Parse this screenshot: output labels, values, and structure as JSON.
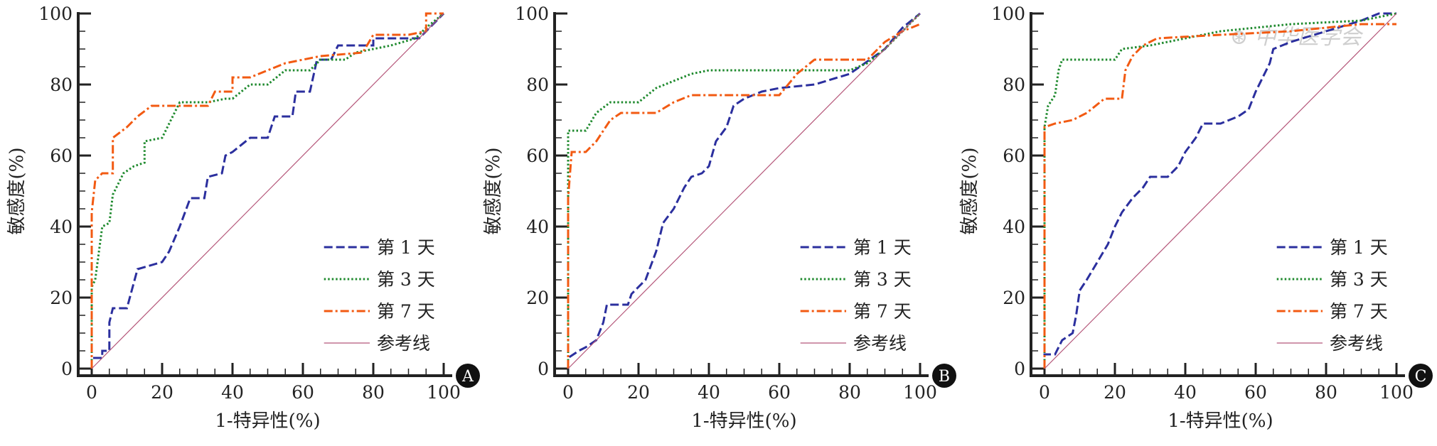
{
  "watermark": "中华医学会",
  "chart_data": [
    {
      "type": "line",
      "panel": "A",
      "xlabel": "1-特异性(%)",
      "ylabel": "敏感度(%)",
      "xlim": [
        0,
        100
      ],
      "ylim": [
        0,
        100
      ],
      "xticks": [
        "0",
        "20",
        "40",
        "60",
        "80",
        "100"
      ],
      "yticks": [
        "0",
        "20",
        "40",
        "60",
        "80",
        "100"
      ],
      "legend_position": "bottom-right",
      "series": [
        {
          "name": "第 1 天",
          "color": "#2b2f9e",
          "style": "dashed",
          "x": [
            0,
            0,
            3,
            3,
            5,
            5,
            6,
            10,
            13,
            20,
            22,
            25,
            28,
            32,
            33,
            37,
            38,
            40,
            45,
            50,
            52,
            57,
            58,
            62,
            64,
            68,
            70,
            80,
            80,
            93,
            95,
            100
          ],
          "y": [
            0,
            3,
            3,
            5,
            5,
            13,
            17,
            17,
            28,
            30,
            33,
            40,
            48,
            48,
            54,
            55,
            60,
            61,
            65,
            65,
            71,
            71,
            78,
            78,
            87,
            87,
            91,
            91,
            93,
            93,
            95,
            100
          ]
        },
        {
          "name": "第 3 天",
          "color": "#1f8a2e",
          "style": "dotted",
          "x": [
            0,
            0,
            1,
            3,
            5,
            6,
            7,
            9,
            12,
            15,
            15,
            20,
            22,
            25,
            33,
            38,
            40,
            45,
            50,
            55,
            62,
            65,
            72,
            75,
            85,
            92,
            95,
            100
          ],
          "y": [
            0,
            23,
            25,
            40,
            41,
            49,
            51,
            55,
            57,
            58,
            64,
            65,
            69,
            75,
            75,
            76,
            76,
            80,
            80,
            84,
            84,
            87,
            87,
            89,
            91,
            93,
            96,
            100
          ]
        },
        {
          "name": "第 7 天",
          "color": "#f25a12",
          "style": "dashdot",
          "x": [
            0,
            0,
            1,
            3,
            6,
            6,
            10,
            13,
            17,
            33,
            35,
            40,
            40,
            45,
            50,
            55,
            65,
            77,
            80,
            90,
            95,
            95,
            100
          ],
          "y": [
            0,
            44,
            53,
            55,
            55,
            65,
            68,
            71,
            74,
            74,
            78,
            78,
            82,
            82,
            84,
            86,
            88,
            89,
            94,
            94,
            95,
            100,
            100
          ]
        },
        {
          "name": "参考线",
          "color": "#b5577a",
          "style": "thin",
          "x": [
            0,
            100
          ],
          "y": [
            0,
            100
          ]
        }
      ]
    },
    {
      "type": "line",
      "panel": "B",
      "xlabel": "1-特异性(%)",
      "ylabel": "敏感度(%)",
      "xlim": [
        0,
        100
      ],
      "ylim": [
        0,
        100
      ],
      "xticks": [
        "0",
        "20",
        "40",
        "60",
        "80",
        "100"
      ],
      "yticks": [
        "0",
        "20",
        "40",
        "60",
        "80",
        "100"
      ],
      "legend_position": "bottom-right",
      "series": [
        {
          "name": "第 1 天",
          "color": "#2b2f9e",
          "style": "dashed",
          "x": [
            0,
            0,
            3,
            5,
            8,
            10,
            11,
            17,
            18,
            20,
            22,
            25,
            27,
            30,
            33,
            35,
            38,
            40,
            42,
            45,
            47,
            50,
            55,
            60,
            70,
            80,
            90,
            95,
            100
          ],
          "y": [
            0,
            3,
            5,
            6,
            8,
            13,
            18,
            18,
            21,
            23,
            25,
            33,
            41,
            45,
            51,
            54,
            55,
            57,
            64,
            68,
            74,
            76,
            78,
            79,
            80,
            83,
            90,
            96,
            100
          ]
        },
        {
          "name": "第 3 天",
          "color": "#1f8a2e",
          "style": "dotted",
          "x": [
            0,
            0,
            5,
            8,
            12,
            20,
            25,
            30,
            35,
            40,
            80,
            85,
            90,
            95,
            100
          ],
          "y": [
            0,
            67,
            67,
            72,
            75,
            75,
            79,
            81,
            83,
            84,
            84,
            86,
            90,
            95,
            100
          ]
        },
        {
          "name": "第 7 天",
          "color": "#f25a12",
          "style": "dashdot",
          "x": [
            0,
            0,
            1,
            5,
            8,
            10,
            12,
            15,
            25,
            30,
            35,
            60,
            65,
            70,
            85,
            90,
            95,
            100
          ],
          "y": [
            0,
            48,
            61,
            61,
            64,
            67,
            70,
            72,
            72,
            75,
            77,
            77,
            83,
            87,
            87,
            92,
            95,
            97
          ]
        },
        {
          "name": "参考线",
          "color": "#b5577a",
          "style": "thin",
          "x": [
            0,
            100
          ],
          "y": [
            0,
            100
          ]
        }
      ]
    },
    {
      "type": "line",
      "panel": "C",
      "xlabel": "1-特异性(%)",
      "ylabel": "敏感度(%)",
      "xlim": [
        0,
        100
      ],
      "ylim": [
        0,
        100
      ],
      "xticks": [
        "0",
        "20",
        "40",
        "60",
        "80",
        "100"
      ],
      "yticks": [
        "0",
        "20",
        "40",
        "60",
        "80",
        "100"
      ],
      "legend_position": "bottom-right",
      "series": [
        {
          "name": "第 1 天",
          "color": "#2b2f9e",
          "style": "dashed",
          "x": [
            0,
            0,
            3,
            5,
            8,
            9,
            10,
            12,
            15,
            18,
            20,
            22,
            25,
            28,
            30,
            35,
            38,
            40,
            43,
            45,
            50,
            55,
            58,
            60,
            62,
            64,
            65,
            70,
            80,
            90,
            95,
            100
          ],
          "y": [
            0,
            4,
            4,
            8,
            10,
            15,
            22,
            25,
            30,
            35,
            40,
            44,
            48,
            51,
            54,
            54,
            57,
            61,
            65,
            69,
            69,
            71,
            73,
            78,
            82,
            86,
            90,
            92,
            95,
            98,
            100,
            100
          ]
        },
        {
          "name": "第 3 天",
          "color": "#1f8a2e",
          "style": "dotted",
          "x": [
            0,
            0,
            1,
            3,
            4,
            5,
            8,
            20,
            22,
            30,
            40,
            50,
            70,
            90,
            100
          ],
          "y": [
            0,
            68,
            74,
            77,
            84,
            87,
            87,
            87,
            90,
            91,
            93,
            95,
            97,
            98,
            100
          ]
        },
        {
          "name": "第 7 天",
          "color": "#f25a12",
          "style": "dashdot",
          "x": [
            0,
            0,
            3,
            8,
            12,
            17,
            22,
            23,
            25,
            28,
            32,
            50,
            70,
            90,
            100
          ],
          "y": [
            0,
            68,
            69,
            70,
            72,
            76,
            76,
            84,
            88,
            91,
            93,
            94,
            95,
            97,
            97
          ]
        },
        {
          "name": "参考线",
          "color": "#b5577a",
          "style": "thin",
          "x": [
            0,
            100
          ],
          "y": [
            0,
            100
          ]
        }
      ]
    }
  ]
}
